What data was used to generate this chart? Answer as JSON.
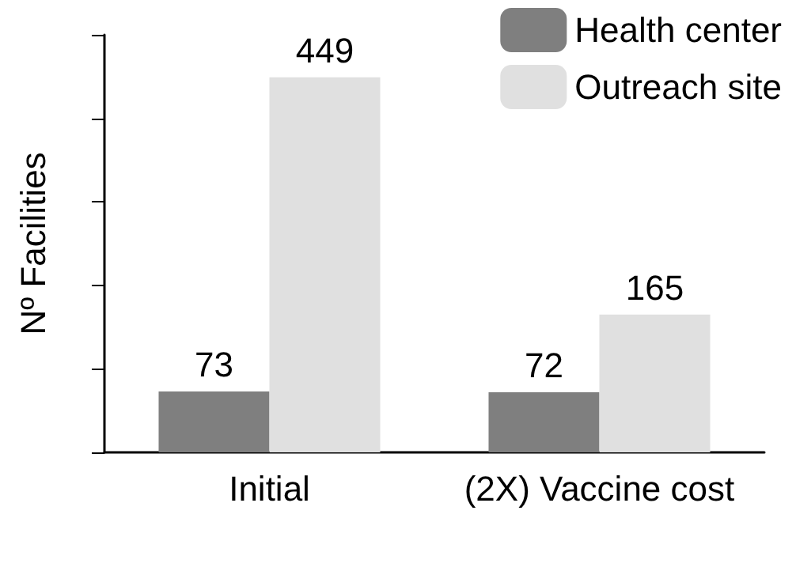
{
  "chart_data": {
    "type": "bar",
    "ylabel": "Nº Facilities",
    "categories": [
      "Initial",
      "(2X) Vaccine cost"
    ],
    "series": [
      {
        "name": "Health center",
        "color": "#7f7f7f",
        "values": [
          73,
          72
        ]
      },
      {
        "name": "Outreach site",
        "color": "#e0e0e0",
        "values": [
          449,
          165
        ]
      }
    ],
    "ylim": [
      0,
      500
    ],
    "yticks": [
      {
        "value": 0,
        "label": null
      },
      {
        "value": 100,
        "label": null
      },
      {
        "value": 200,
        "label": null
      },
      {
        "value": 300,
        "label": null
      },
      {
        "value": 400,
        "label": null
      },
      {
        "value": 500,
        "label": null
      }
    ],
    "tick_labels": "x",
    "data_labels": true,
    "grid": false,
    "legend": "top right"
  }
}
